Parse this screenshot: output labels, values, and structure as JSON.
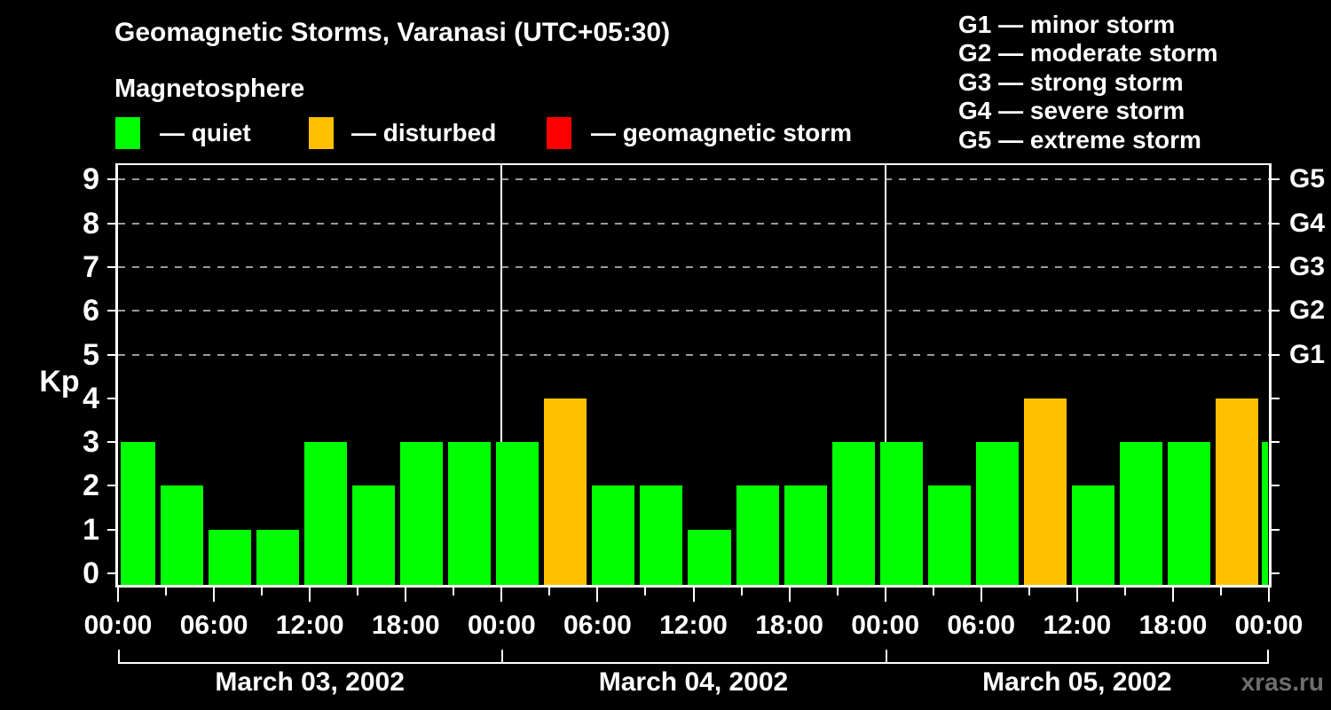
{
  "title": "Geomagnetic Storms, Varanasi (UTC+05:30)",
  "subtitle": "Magnetosphere",
  "legend": {
    "items": [
      {
        "label": "— quiet",
        "status": "quiet",
        "color": "#00ff00"
      },
      {
        "label": "— disturbed",
        "status": "disturbed",
        "color": "#ffc000"
      },
      {
        "label": "— geomagnetic storm",
        "status": "storm",
        "color": "#ff0000"
      }
    ]
  },
  "storm_scale": [
    "G1 — minor storm",
    "G2 — moderate storm",
    "G3 — strong storm",
    "G4 — severe storm",
    "G5 — extreme storm"
  ],
  "watermark": "xras.ru",
  "chart_data": {
    "type": "bar",
    "title": "Geomagnetic Storms, Varanasi (UTC+05:30)",
    "ylabel": "Kp",
    "ylim": [
      -0.3,
      9.4
    ],
    "y_ticks": [
      0,
      1,
      2,
      3,
      4,
      5,
      6,
      7,
      8,
      9
    ],
    "gridlines_at_kp": [
      5,
      6,
      7,
      8,
      9
    ],
    "grid_color": "#9a9a9a",
    "frame_color": "#ffffff",
    "right_axis": [
      {
        "kp": 9,
        "label": "G5"
      },
      {
        "kp": 8,
        "label": "G4"
      },
      {
        "kp": 7,
        "label": "G3"
      },
      {
        "kp": 6,
        "label": "G2"
      },
      {
        "kp": 5,
        "label": "G1"
      }
    ],
    "x_axis": {
      "total_hours": 72,
      "tick_interval_hours": 3,
      "label_interval_hours": 6,
      "labels": [
        "00:00",
        "06:00",
        "12:00",
        "18:00",
        "00:00",
        "06:00",
        "12:00",
        "18:00",
        "00:00",
        "06:00",
        "12:00",
        "18:00",
        "00:00"
      ]
    },
    "days": [
      "March 03, 2002",
      "March 04, 2002",
      "March 05, 2002"
    ],
    "colors": {
      "quiet": "#00ff00",
      "disturbed": "#ffc000",
      "storm": "#ff0000"
    },
    "bars": [
      {
        "start_h": 0,
        "end_h": 2.5,
        "kp": 3,
        "status": "quiet"
      },
      {
        "start_h": 2.5,
        "end_h": 5.5,
        "kp": 2,
        "status": "quiet"
      },
      {
        "start_h": 5.5,
        "end_h": 8.5,
        "kp": 1,
        "status": "quiet"
      },
      {
        "start_h": 8.5,
        "end_h": 11.5,
        "kp": 1,
        "status": "quiet"
      },
      {
        "start_h": 11.5,
        "end_h": 14.5,
        "kp": 3,
        "status": "quiet"
      },
      {
        "start_h": 14.5,
        "end_h": 17.5,
        "kp": 2,
        "status": "quiet"
      },
      {
        "start_h": 17.5,
        "end_h": 20.5,
        "kp": 3,
        "status": "quiet"
      },
      {
        "start_h": 20.5,
        "end_h": 23.5,
        "kp": 3,
        "status": "quiet"
      },
      {
        "start_h": 23.5,
        "end_h": 26.5,
        "kp": 3,
        "status": "quiet"
      },
      {
        "start_h": 26.5,
        "end_h": 29.5,
        "kp": 4,
        "status": "disturbed"
      },
      {
        "start_h": 29.5,
        "end_h": 32.5,
        "kp": 2,
        "status": "quiet"
      },
      {
        "start_h": 32.5,
        "end_h": 35.5,
        "kp": 2,
        "status": "quiet"
      },
      {
        "start_h": 35.5,
        "end_h": 38.5,
        "kp": 1,
        "status": "quiet"
      },
      {
        "start_h": 38.5,
        "end_h": 41.5,
        "kp": 2,
        "status": "quiet"
      },
      {
        "start_h": 41.5,
        "end_h": 44.5,
        "kp": 2,
        "status": "quiet"
      },
      {
        "start_h": 44.5,
        "end_h": 47.5,
        "kp": 3,
        "status": "quiet"
      },
      {
        "start_h": 47.5,
        "end_h": 50.5,
        "kp": 3,
        "status": "quiet"
      },
      {
        "start_h": 50.5,
        "end_h": 53.5,
        "kp": 2,
        "status": "quiet"
      },
      {
        "start_h": 53.5,
        "end_h": 56.5,
        "kp": 3,
        "status": "quiet"
      },
      {
        "start_h": 56.5,
        "end_h": 59.5,
        "kp": 4,
        "status": "disturbed"
      },
      {
        "start_h": 59.5,
        "end_h": 62.5,
        "kp": 2,
        "status": "quiet"
      },
      {
        "start_h": 62.5,
        "end_h": 65.5,
        "kp": 3,
        "status": "quiet"
      },
      {
        "start_h": 65.5,
        "end_h": 68.5,
        "kp": 3,
        "status": "quiet"
      },
      {
        "start_h": 68.5,
        "end_h": 71.5,
        "kp": 4,
        "status": "disturbed"
      },
      {
        "start_h": 71.5,
        "end_h": 72,
        "kp": 3,
        "status": "quiet"
      }
    ]
  }
}
